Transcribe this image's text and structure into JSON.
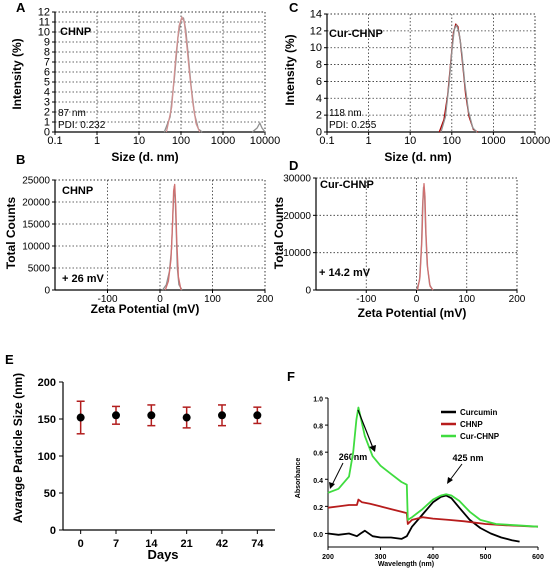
{
  "chart_data": [
    {
      "panel": "A",
      "type": "line",
      "xscale": "log",
      "xlim": [
        0.1,
        10000
      ],
      "ylim": [
        0,
        12
      ],
      "xticks": [
        0.1,
        1,
        10,
        100,
        1000,
        10000
      ],
      "yticks": [
        0,
        1,
        2,
        3,
        4,
        5,
        6,
        7,
        8,
        9,
        10,
        11,
        12
      ],
      "xlabel": "Size (d. nm)",
      "ylabel": "Intensity (%)",
      "grid": true,
      "annotations": [
        "CHNP",
        "87 nm",
        "PDI: 0.232"
      ],
      "series": [
        {
          "color": "#909090",
          "x": [
            40,
            55,
            70,
            85,
            100,
            115,
            130,
            150,
            175,
            210,
            260,
            320
          ],
          "y": [
            0,
            1.5,
            5.5,
            9.5,
            11.2,
            11.4,
            10.2,
            7.5,
            4.5,
            1.8,
            0.3,
            0
          ]
        },
        {
          "color": "#d09090",
          "x": [
            45,
            60,
            75,
            90,
            105,
            120,
            135,
            160,
            190,
            230,
            280
          ],
          "y": [
            0,
            2.5,
            7.5,
            10.6,
            11.5,
            11.0,
            9.0,
            5.8,
            3.0,
            0.8,
            0
          ]
        },
        {
          "color": "#909090",
          "x": [
            5000,
            6500,
            7500,
            8500,
            10000
          ],
          "y": [
            0,
            0.4,
            0.9,
            0.4,
            0
          ]
        }
      ]
    },
    {
      "panel": "C",
      "type": "line",
      "xscale": "log",
      "xlim": [
        0.1,
        10000
      ],
      "ylim": [
        0,
        14
      ],
      "xticks": [
        0.1,
        1,
        10,
        100,
        1000,
        10000
      ],
      "yticks": [
        0,
        2,
        4,
        6,
        8,
        10,
        12,
        14
      ],
      "xlabel": "Size (d. nm)",
      "ylabel": "Intensity (%)",
      "grid": true,
      "annotations": [
        "Cur-CHNP",
        "118 nm",
        "PDI: 0.255"
      ],
      "series": [
        {
          "color": "#b00000",
          "x": [
            50,
            65,
            80,
            95,
            110,
            125,
            140,
            160,
            185,
            215,
            260,
            330,
            420
          ],
          "y": [
            0,
            1.5,
            4.5,
            8.5,
            11.8,
            12.8,
            12.5,
            10.8,
            7.8,
            4.5,
            1.8,
            0.3,
            0
          ]
        },
        {
          "color": "#909090",
          "x": [
            55,
            70,
            85,
            100,
            115,
            130,
            150,
            175,
            205,
            250,
            320,
            400
          ],
          "y": [
            0,
            1.8,
            5.5,
            9.5,
            12.2,
            12.7,
            11.8,
            9.3,
            5.8,
            2.5,
            0.5,
            0
          ]
        }
      ]
    },
    {
      "panel": "B",
      "type": "line",
      "xlim": [
        -200,
        200
      ],
      "ylim": [
        0,
        25000
      ],
      "xticks": [
        -100,
        0,
        100,
        200
      ],
      "yticks": [
        0,
        5000,
        10000,
        15000,
        20000,
        25000
      ],
      "xlabel": "Zeta Potential (mV)",
      "ylabel": "Total Counts",
      "grid": true,
      "annotations": [
        "CHNP",
        "+ 26 mV"
      ],
      "series": [
        {
          "color": "#909090",
          "x": [
            5,
            12,
            18,
            22,
            25,
            27,
            29,
            31,
            33,
            36,
            42
          ],
          "y": [
            0,
            1200,
            4200,
            9500,
            18500,
            23500,
            21000,
            13000,
            5000,
            1200,
            0
          ]
        },
        {
          "color": "#d07070",
          "x": [
            10,
            16,
            21,
            24,
            26,
            28,
            30,
            32,
            35,
            40
          ],
          "y": [
            0,
            2000,
            7000,
            15500,
            22500,
            24000,
            19000,
            11000,
            3000,
            0
          ]
        }
      ]
    },
    {
      "panel": "D",
      "type": "line",
      "xlim": [
        -200,
        200
      ],
      "ylim": [
        0,
        30000
      ],
      "xticks": [
        -100,
        0,
        100,
        200
      ],
      "yticks": [
        0,
        10000,
        20000,
        30000
      ],
      "xlabel": "Zeta Potential (mV)",
      "ylabel": "Total Counts",
      "grid": true,
      "annotations": [
        "Cur-CHNP",
        "+ 14.2 mV"
      ],
      "series": [
        {
          "color": "#909090",
          "x": [
            0,
            6,
            10,
            12,
            14,
            16,
            18,
            21,
            26,
            32
          ],
          "y": [
            0,
            2500,
            12000,
            22000,
            27500,
            26000,
            17000,
            7000,
            1500,
            0
          ]
        },
        {
          "color": "#d07070",
          "x": [
            2,
            7,
            11,
            13,
            15,
            17,
            19,
            22,
            27,
            33
          ],
          "y": [
            0,
            3500,
            14000,
            24000,
            28500,
            25000,
            15000,
            6000,
            1000,
            0
          ]
        }
      ]
    },
    {
      "panel": "E",
      "type": "scatter",
      "categories": [
        "0",
        "7",
        "14",
        "21",
        "42",
        "74"
      ],
      "values": [
        152,
        155,
        155,
        152,
        155,
        155
      ],
      "errors": [
        22,
        12,
        14,
        14,
        14,
        11
      ],
      "ylim": [
        0,
        200
      ],
      "yticks": [
        0,
        50,
        100,
        150,
        200
      ],
      "xlabel": "Days",
      "ylabel": "Avarage Particle Size (nm)",
      "grid": false
    },
    {
      "panel": "F",
      "type": "line",
      "xlim": [
        200,
        600
      ],
      "ylim": [
        -0.1,
        1.0
      ],
      "xticks": [
        200,
        300,
        400,
        500,
        600
      ],
      "yticks": [
        0.0,
        0.2,
        0.4,
        0.6,
        0.8,
        1.0
      ],
      "xlabel": "Wavelength (nm)",
      "ylabel": "Absorbance",
      "grid": false,
      "legend": "top-right",
      "annotations": [
        "260nm",
        "425 nm"
      ],
      "series": [
        {
          "name": "Curcumin",
          "color": "#000000",
          "x": [
            200,
            220,
            240,
            255,
            262,
            270,
            285,
            300,
            320,
            340,
            350,
            360,
            380,
            400,
            415,
            425,
            435,
            450,
            470,
            490,
            510,
            530,
            550,
            565
          ],
          "y": [
            0.0,
            -0.01,
            0.0,
            -0.02,
            0.0,
            0.02,
            -0.02,
            -0.03,
            -0.03,
            -0.04,
            -0.02,
            0.05,
            0.14,
            0.23,
            0.27,
            0.28,
            0.26,
            0.19,
            0.1,
            0.04,
            0.0,
            -0.03,
            -0.05,
            -0.06
          ]
        },
        {
          "name": "CHNP",
          "color": "#b71c1c",
          "x": [
            200,
            220,
            240,
            255,
            258,
            265,
            280,
            300,
            320,
            340,
            350,
            352,
            360,
            380,
            400,
            430,
            460,
            500,
            540,
            600
          ],
          "y": [
            0.19,
            0.2,
            0.21,
            0.21,
            0.25,
            0.23,
            0.22,
            0.2,
            0.18,
            0.16,
            0.15,
            0.07,
            0.1,
            0.12,
            0.11,
            0.1,
            0.09,
            0.07,
            0.06,
            0.05
          ]
        },
        {
          "name": "Cur-CHNP",
          "color": "#3fdc3f",
          "x": [
            200,
            220,
            240,
            248,
            254,
            258,
            262,
            270,
            285,
            300,
            320,
            340,
            350,
            352,
            360,
            380,
            400,
            415,
            425,
            435,
            450,
            470,
            490,
            520,
            560,
            600
          ],
          "y": [
            0.3,
            0.33,
            0.42,
            0.6,
            0.84,
            0.93,
            0.86,
            0.72,
            0.57,
            0.5,
            0.44,
            0.38,
            0.36,
            0.1,
            0.12,
            0.18,
            0.25,
            0.28,
            0.29,
            0.28,
            0.24,
            0.16,
            0.1,
            0.07,
            0.06,
            0.05
          ]
        }
      ]
    }
  ]
}
